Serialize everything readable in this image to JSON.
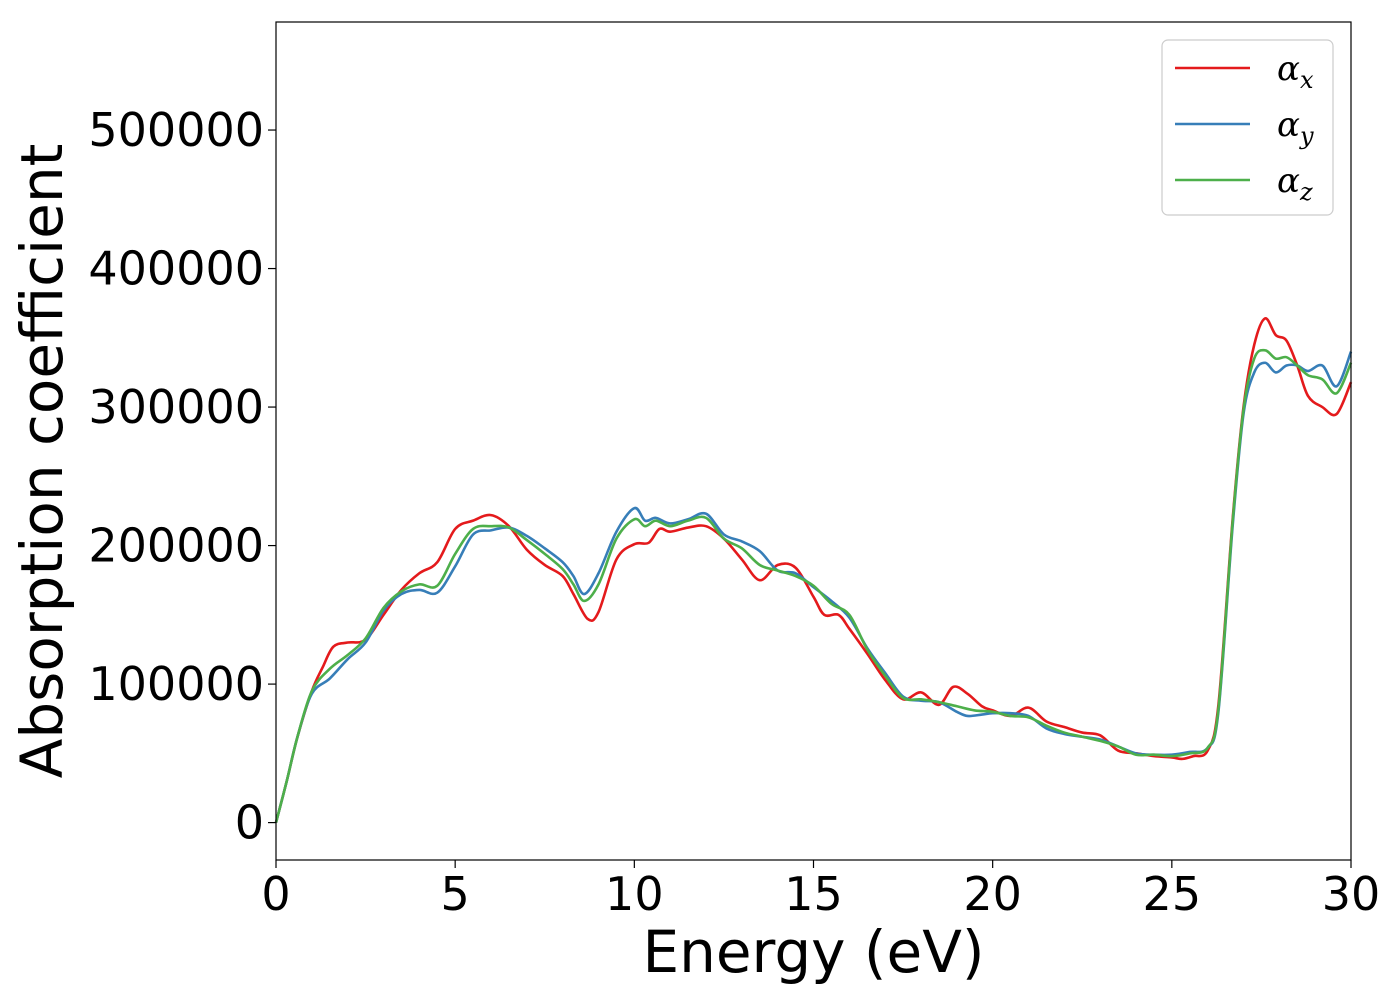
{
  "chart_data": {
    "type": "line",
    "xlabel": "Energy (eV)",
    "ylabel": "Absorption coefficient",
    "xlim": [
      0,
      30
    ],
    "ylim": [
      -27000,
      578000
    ],
    "x_ticks": [
      "0",
      "5",
      "10",
      "15",
      "20",
      "25",
      "30"
    ],
    "y_ticks": [
      "0",
      "100000",
      "200000",
      "300000",
      "400000",
      "500000"
    ],
    "x_tick_values": [
      0,
      5,
      10,
      15,
      20,
      25,
      30
    ],
    "y_tick_values": [
      0,
      100000,
      200000,
      300000,
      400000,
      500000
    ],
    "grid": false,
    "legend_position": "top-right",
    "series": [
      {
        "name": "αx",
        "legend_symbol": "α",
        "legend_sub": "x",
        "color": "#e41a1c",
        "points": [
          [
            0,
            0
          ],
          [
            0.3,
            30000
          ],
          [
            0.6,
            62000
          ],
          [
            1,
            95000
          ],
          [
            1.3,
            112000
          ],
          [
            1.6,
            127000
          ],
          [
            2,
            130000
          ],
          [
            2.5,
            132000
          ],
          [
            3,
            150000
          ],
          [
            3.5,
            168000
          ],
          [
            4,
            180000
          ],
          [
            4.5,
            188000
          ],
          [
            5,
            212000
          ],
          [
            5.5,
            218000
          ],
          [
            6,
            222000
          ],
          [
            6.5,
            214000
          ],
          [
            7,
            197000
          ],
          [
            7.5,
            186000
          ],
          [
            8,
            178000
          ],
          [
            8.3,
            165000
          ],
          [
            8.7,
            147000
          ],
          [
            9,
            152000
          ],
          [
            9.5,
            190000
          ],
          [
            10,
            201000
          ],
          [
            10.4,
            202000
          ],
          [
            10.7,
            212000
          ],
          [
            11,
            210000
          ],
          [
            11.5,
            213000
          ],
          [
            12,
            214000
          ],
          [
            12.5,
            205000
          ],
          [
            13,
            190000
          ],
          [
            13.5,
            175000
          ],
          [
            14,
            186000
          ],
          [
            14.5,
            184000
          ],
          [
            15,
            163000
          ],
          [
            15.3,
            150000
          ],
          [
            15.7,
            150000
          ],
          [
            16,
            140000
          ],
          [
            16.5,
            122000
          ],
          [
            17,
            103000
          ],
          [
            17.5,
            89000
          ],
          [
            18,
            94000
          ],
          [
            18.5,
            85000
          ],
          [
            18.9,
            98000
          ],
          [
            19.3,
            93000
          ],
          [
            19.7,
            84000
          ],
          [
            20,
            81000
          ],
          [
            20.5,
            77000
          ],
          [
            21,
            83000
          ],
          [
            21.5,
            73000
          ],
          [
            22,
            69000
          ],
          [
            22.5,
            65000
          ],
          [
            23,
            63000
          ],
          [
            23.5,
            52000
          ],
          [
            24,
            50000
          ],
          [
            24.5,
            48000
          ],
          [
            25,
            47000
          ],
          [
            25.3,
            46000
          ],
          [
            25.6,
            48000
          ],
          [
            26,
            52000
          ],
          [
            26.3,
            85000
          ],
          [
            26.7,
            220000
          ],
          [
            27,
            300000
          ],
          [
            27.3,
            345000
          ],
          [
            27.6,
            364000
          ],
          [
            27.9,
            352000
          ],
          [
            28.2,
            348000
          ],
          [
            28.5,
            330000
          ],
          [
            28.8,
            308000
          ],
          [
            29.2,
            300000
          ],
          [
            29.6,
            295000
          ],
          [
            30,
            318000
          ]
        ]
      },
      {
        "name": "αy",
        "legend_symbol": "α",
        "legend_sub": "y",
        "color": "#377eb8",
        "points": [
          [
            0,
            0
          ],
          [
            0.3,
            30000
          ],
          [
            0.6,
            62000
          ],
          [
            1,
            93000
          ],
          [
            1.5,
            104000
          ],
          [
            2,
            118000
          ],
          [
            2.5,
            130000
          ],
          [
            3,
            153000
          ],
          [
            3.5,
            165000
          ],
          [
            4,
            168000
          ],
          [
            4.5,
            166000
          ],
          [
            5,
            185000
          ],
          [
            5.5,
            208000
          ],
          [
            6,
            211000
          ],
          [
            6.5,
            213000
          ],
          [
            7,
            207000
          ],
          [
            7.5,
            198000
          ],
          [
            8,
            188000
          ],
          [
            8.3,
            178000
          ],
          [
            8.6,
            165000
          ],
          [
            9,
            180000
          ],
          [
            9.5,
            210000
          ],
          [
            10,
            227000
          ],
          [
            10.3,
            218000
          ],
          [
            10.6,
            220000
          ],
          [
            11,
            216000
          ],
          [
            11.5,
            219000
          ],
          [
            12,
            223000
          ],
          [
            12.5,
            208000
          ],
          [
            13,
            203000
          ],
          [
            13.5,
            196000
          ],
          [
            14,
            182000
          ],
          [
            14.5,
            180000
          ],
          [
            15,
            170000
          ],
          [
            15.5,
            160000
          ],
          [
            16,
            148000
          ],
          [
            16.5,
            126000
          ],
          [
            17,
            108000
          ],
          [
            17.5,
            91000
          ],
          [
            18,
            88000
          ],
          [
            18.5,
            87000
          ],
          [
            19,
            80000
          ],
          [
            19.3,
            77000
          ],
          [
            19.7,
            78000
          ],
          [
            20,
            79000
          ],
          [
            20.5,
            79000
          ],
          [
            21,
            77000
          ],
          [
            21.5,
            68000
          ],
          [
            22,
            64000
          ],
          [
            22.5,
            62000
          ],
          [
            23,
            60000
          ],
          [
            23.5,
            55000
          ],
          [
            24,
            50000
          ],
          [
            24.5,
            49000
          ],
          [
            25,
            49000
          ],
          [
            25.5,
            51000
          ],
          [
            26,
            54000
          ],
          [
            26.3,
            80000
          ],
          [
            26.7,
            215000
          ],
          [
            27,
            295000
          ],
          [
            27.3,
            325000
          ],
          [
            27.6,
            332000
          ],
          [
            27.9,
            325000
          ],
          [
            28.2,
            330000
          ],
          [
            28.5,
            330000
          ],
          [
            28.8,
            326000
          ],
          [
            29.2,
            330000
          ],
          [
            29.6,
            315000
          ],
          [
            30,
            340000
          ]
        ]
      },
      {
        "name": "αz",
        "legend_symbol": "α",
        "legend_sub": "z",
        "color": "#4daf4a",
        "points": [
          [
            0,
            0
          ],
          [
            0.3,
            30000
          ],
          [
            0.6,
            62000
          ],
          [
            1,
            95000
          ],
          [
            1.5,
            111000
          ],
          [
            2,
            121000
          ],
          [
            2.5,
            133000
          ],
          [
            3,
            155000
          ],
          [
            3.5,
            167000
          ],
          [
            4,
            172000
          ],
          [
            4.5,
            171000
          ],
          [
            5,
            194000
          ],
          [
            5.5,
            212000
          ],
          [
            6,
            214000
          ],
          [
            6.5,
            213000
          ],
          [
            7,
            204000
          ],
          [
            7.5,
            194000
          ],
          [
            8,
            183000
          ],
          [
            8.3,
            172000
          ],
          [
            8.6,
            160000
          ],
          [
            9,
            172000
          ],
          [
            9.5,
            205000
          ],
          [
            10,
            219000
          ],
          [
            10.3,
            214000
          ],
          [
            10.6,
            218000
          ],
          [
            11,
            214000
          ],
          [
            11.5,
            218000
          ],
          [
            12,
            220000
          ],
          [
            12.5,
            205000
          ],
          [
            13,
            198000
          ],
          [
            13.5,
            186000
          ],
          [
            14,
            182000
          ],
          [
            14.5,
            178000
          ],
          [
            15,
            171000
          ],
          [
            15.5,
            158000
          ],
          [
            16,
            150000
          ],
          [
            16.5,
            125000
          ],
          [
            17,
            106000
          ],
          [
            17.5,
            90000
          ],
          [
            18,
            89000
          ],
          [
            18.5,
            87000
          ],
          [
            19,
            84000
          ],
          [
            19.5,
            81000
          ],
          [
            20,
            80000
          ],
          [
            20.5,
            77000
          ],
          [
            21,
            76000
          ],
          [
            21.5,
            70000
          ],
          [
            22,
            65000
          ],
          [
            22.5,
            62000
          ],
          [
            23,
            59000
          ],
          [
            23.5,
            55000
          ],
          [
            24,
            49000
          ],
          [
            24.5,
            49000
          ],
          [
            25,
            48000
          ],
          [
            25.5,
            50000
          ],
          [
            26,
            54000
          ],
          [
            26.3,
            82000
          ],
          [
            26.7,
            218000
          ],
          [
            27,
            298000
          ],
          [
            27.3,
            335000
          ],
          [
            27.6,
            341000
          ],
          [
            27.9,
            335000
          ],
          [
            28.2,
            336000
          ],
          [
            28.5,
            330000
          ],
          [
            28.8,
            323000
          ],
          [
            29.2,
            320000
          ],
          [
            29.6,
            310000
          ],
          [
            30,
            332000
          ]
        ]
      }
    ]
  }
}
